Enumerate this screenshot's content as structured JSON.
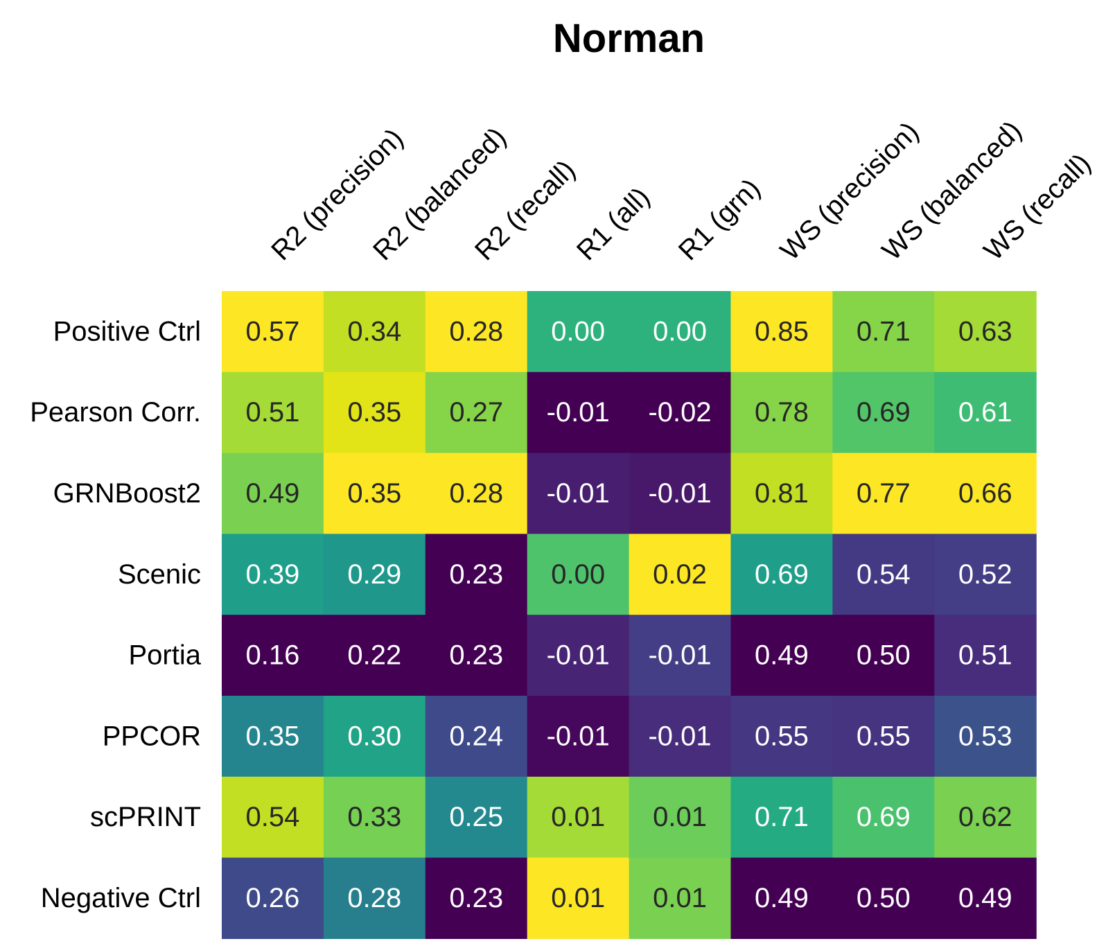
{
  "chart_data": {
    "type": "heatmap",
    "title": "Norman",
    "xlabel": "",
    "ylabel": "",
    "colormap": "viridis",
    "color_scale": "per-column",
    "columns": [
      "R2 (precision)",
      "R2 (balanced)",
      "R2 (recall)",
      "R1 (all)",
      "R1 (grn)",
      "WS (precision)",
      "WS (balanced)",
      "WS (recall)"
    ],
    "rows": [
      "Positive Ctrl",
      "Pearson Corr.",
      "GRNBoost2",
      "Scenic",
      "Portia",
      "PPCOR",
      "scPRINT",
      "Negative Ctrl"
    ],
    "values": [
      [
        0.57,
        0.34,
        0.28,
        0.0,
        0.0,
        0.85,
        0.71,
        0.63
      ],
      [
        0.51,
        0.35,
        0.27,
        -0.01,
        -0.02,
        0.78,
        0.69,
        0.61
      ],
      [
        0.49,
        0.35,
        0.28,
        -0.01,
        -0.01,
        0.81,
        0.77,
        0.66
      ],
      [
        0.39,
        0.29,
        0.23,
        0.0,
        0.02,
        0.69,
        0.54,
        0.52
      ],
      [
        0.16,
        0.22,
        0.23,
        -0.01,
        -0.01,
        0.49,
        0.5,
        0.51
      ],
      [
        0.35,
        0.3,
        0.24,
        -0.01,
        -0.01,
        0.55,
        0.55,
        0.53
      ],
      [
        0.54,
        0.33,
        0.25,
        0.01,
        0.01,
        0.71,
        0.69,
        0.62
      ],
      [
        0.26,
        0.28,
        0.23,
        0.01,
        0.01,
        0.49,
        0.5,
        0.49
      ]
    ],
    "value_labels": [
      [
        "0.57",
        "0.34",
        "0.28",
        "0.00",
        "0.00",
        "0.85",
        "0.71",
        "0.63"
      ],
      [
        "0.51",
        "0.35",
        "0.27",
        "-0.01",
        "-0.02",
        "0.78",
        "0.69",
        "0.61"
      ],
      [
        "0.49",
        "0.35",
        "0.28",
        "-0.01",
        "-0.01",
        "0.81",
        "0.77",
        "0.66"
      ],
      [
        "0.39",
        "0.29",
        "0.23",
        "0.00",
        "0.02",
        "0.69",
        "0.54",
        "0.52"
      ],
      [
        "0.16",
        "0.22",
        "0.23",
        "-0.01",
        "-0.01",
        "0.49",
        "0.50",
        "0.51"
      ],
      [
        "0.35",
        "0.30",
        "0.24",
        "-0.01",
        "-0.01",
        "0.55",
        "0.55",
        "0.53"
      ],
      [
        "0.54",
        "0.33",
        "0.25",
        "0.01",
        "0.01",
        "0.71",
        "0.69",
        "0.62"
      ],
      [
        "0.26",
        "0.28",
        "0.23",
        "0.01",
        "0.01",
        "0.49",
        "0.50",
        "0.49"
      ]
    ],
    "cell_colors": [
      [
        "#fde725",
        "#c2df23",
        "#fde725",
        "#2db27d",
        "#2db27d",
        "#fde725",
        "#86d549",
        "#a5db36"
      ],
      [
        "#a5db36",
        "#e2e418",
        "#86d549",
        "#440154",
        "#440154",
        "#86d549",
        "#52c569",
        "#3fbc73"
      ],
      [
        "#7ad151",
        "#fde725",
        "#fde725",
        "#481f70",
        "#48186a",
        "#c2df23",
        "#fde725",
        "#fde725"
      ],
      [
        "#1f9e89",
        "#1f988b",
        "#440154",
        "#4ec36b",
        "#fde725",
        "#1f9e89",
        "#443983",
        "#433e85"
      ],
      [
        "#440154",
        "#440154",
        "#440154",
        "#482475",
        "#433e85",
        "#440154",
        "#440154",
        "#472d7b"
      ],
      [
        "#25858e",
        "#20a386",
        "#3e4a89",
        "#46085c",
        "#472d7b",
        "#453781",
        "#463480",
        "#3b528b"
      ],
      [
        "#c2df23",
        "#75d054",
        "#23898e",
        "#a5db36",
        "#6ccd5a",
        "#25ab82",
        "#4ac16d",
        "#7ad151"
      ],
      [
        "#3e4a89",
        "#277f8e",
        "#440154",
        "#fde725",
        "#7ad151",
        "#440154",
        "#440154",
        "#440154"
      ]
    ],
    "text_colors": [
      [
        "#262626",
        "#262626",
        "#262626",
        "#ffffff",
        "#ffffff",
        "#262626",
        "#262626",
        "#262626"
      ],
      [
        "#262626",
        "#262626",
        "#262626",
        "#ffffff",
        "#ffffff",
        "#262626",
        "#262626",
        "#ffffff"
      ],
      [
        "#262626",
        "#262626",
        "#262626",
        "#ffffff",
        "#ffffff",
        "#262626",
        "#262626",
        "#262626"
      ],
      [
        "#ffffff",
        "#ffffff",
        "#ffffff",
        "#262626",
        "#262626",
        "#ffffff",
        "#ffffff",
        "#ffffff"
      ],
      [
        "#ffffff",
        "#ffffff",
        "#ffffff",
        "#ffffff",
        "#ffffff",
        "#ffffff",
        "#ffffff",
        "#ffffff"
      ],
      [
        "#ffffff",
        "#ffffff",
        "#ffffff",
        "#ffffff",
        "#ffffff",
        "#ffffff",
        "#ffffff",
        "#ffffff"
      ],
      [
        "#262626",
        "#262626",
        "#ffffff",
        "#262626",
        "#262626",
        "#ffffff",
        "#ffffff",
        "#262626"
      ],
      [
        "#ffffff",
        "#ffffff",
        "#ffffff",
        "#262626",
        "#262626",
        "#ffffff",
        "#ffffff",
        "#ffffff"
      ]
    ],
    "grid": false,
    "legend": false
  }
}
